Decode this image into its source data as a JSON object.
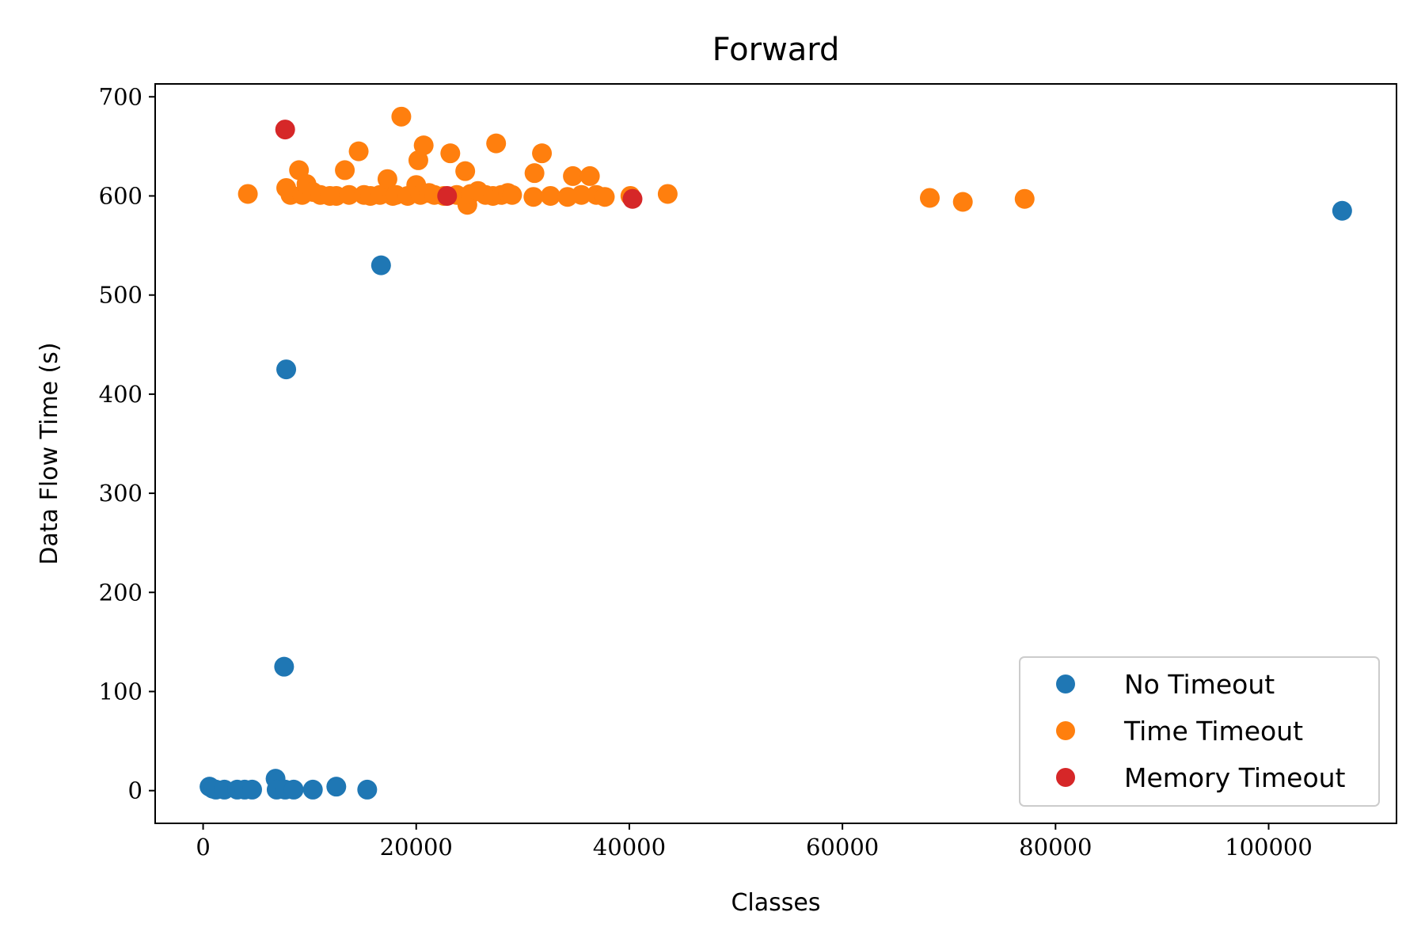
{
  "chart_data": {
    "type": "scatter",
    "title": "Forward",
    "xlabel": "Classes",
    "ylabel": "Data Flow Time (s)",
    "xlim": [
      -4500,
      112000
    ],
    "ylim": [
      -33,
      713
    ],
    "xticks": [
      0,
      20000,
      40000,
      60000,
      80000,
      100000
    ],
    "xtick_labels": [
      "0",
      "20000",
      "40000",
      "60000",
      "80000",
      "100000"
    ],
    "yticks": [
      0,
      100,
      200,
      300,
      400,
      500,
      600,
      700
    ],
    "ytick_labels": [
      "0",
      "100",
      "200",
      "300",
      "400",
      "500",
      "600",
      "700"
    ],
    "grid": false,
    "legend_position": "lower-right",
    "series": [
      {
        "name": "No Timeout",
        "color": "#1f77b4",
        "points": [
          [
            600,
            4
          ],
          [
            900,
            2
          ],
          [
            1200,
            1
          ],
          [
            2000,
            1
          ],
          [
            3200,
            1
          ],
          [
            3900,
            1
          ],
          [
            4600,
            1
          ],
          [
            6800,
            12
          ],
          [
            6900,
            1
          ],
          [
            7700,
            1
          ],
          [
            8500,
            1
          ],
          [
            10300,
            1
          ],
          [
            12500,
            4
          ],
          [
            15400,
            1
          ],
          [
            7600,
            125
          ],
          [
            7800,
            425
          ],
          [
            16700,
            530
          ],
          [
            106900,
            585
          ]
        ]
      },
      {
        "name": "Time Timeout",
        "color": "#ff7f0e",
        "points": [
          [
            4200,
            602
          ],
          [
            7800,
            608
          ],
          [
            8200,
            601
          ],
          [
            9000,
            626
          ],
          [
            9300,
            601
          ],
          [
            9700,
            612
          ],
          [
            10300,
            604
          ],
          [
            11000,
            601
          ],
          [
            11900,
            600
          ],
          [
            12500,
            600
          ],
          [
            13300,
            626
          ],
          [
            13700,
            601
          ],
          [
            14600,
            645
          ],
          [
            15100,
            601
          ],
          [
            15700,
            600
          ],
          [
            16600,
            601
          ],
          [
            17300,
            617
          ],
          [
            17800,
            600
          ],
          [
            18100,
            601
          ],
          [
            18600,
            680
          ],
          [
            19200,
            600
          ],
          [
            20000,
            611
          ],
          [
            20200,
            636
          ],
          [
            20400,
            601
          ],
          [
            20700,
            651
          ],
          [
            21200,
            603
          ],
          [
            21700,
            601
          ],
          [
            22600,
            600
          ],
          [
            23200,
            643
          ],
          [
            23800,
            601
          ],
          [
            24600,
            625
          ],
          [
            24800,
            591
          ],
          [
            25100,
            602
          ],
          [
            25800,
            605
          ],
          [
            26500,
            601
          ],
          [
            27200,
            600
          ],
          [
            27500,
            653
          ],
          [
            28000,
            601
          ],
          [
            28600,
            603
          ],
          [
            29000,
            601
          ],
          [
            31000,
            599
          ],
          [
            31100,
            623
          ],
          [
            31800,
            643
          ],
          [
            32600,
            600
          ],
          [
            34200,
            599
          ],
          [
            34700,
            620
          ],
          [
            35500,
            601
          ],
          [
            36300,
            620
          ],
          [
            36900,
            601
          ],
          [
            37700,
            599
          ],
          [
            40100,
            600
          ],
          [
            43600,
            602
          ],
          [
            68200,
            598
          ],
          [
            71300,
            594
          ],
          [
            77100,
            597
          ]
        ]
      },
      {
        "name": "Memory Timeout",
        "color": "#d62728",
        "points": [
          [
            7700,
            667
          ],
          [
            22900,
            600
          ],
          [
            40300,
            597
          ]
        ]
      }
    ]
  }
}
